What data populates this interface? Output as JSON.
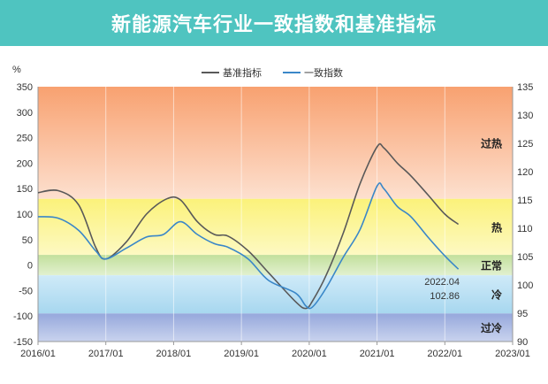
{
  "header": {
    "title": "新能源汽车行业一致指数和基准指标"
  },
  "chart_data": {
    "type": "line",
    "title": "新能源汽车行业一致指数和基准指标",
    "x_tick_labels": [
      "2016/01",
      "2017/01",
      "2018/01",
      "2019/01",
      "2020/01",
      "2021/01",
      "2022/01",
      "2023/01"
    ],
    "left_axis": {
      "unit": "%",
      "range": [
        -150,
        350
      ],
      "ticks": [
        350,
        300,
        250,
        200,
        150,
        100,
        50,
        0,
        -50,
        -100,
        -150
      ]
    },
    "right_axis": {
      "range": [
        90,
        135
      ],
      "ticks": [
        135,
        130,
        125,
        120,
        115,
        110,
        105,
        100,
        95,
        90
      ]
    },
    "zones": [
      {
        "label": "过热",
        "from": 130,
        "to": 350,
        "color": "#f9a877"
      },
      {
        "label": "热",
        "from": 20,
        "to": 130,
        "color": "#fbf48e"
      },
      {
        "label": "正常",
        "from": -20,
        "to": 20,
        "color": "#c9e3a6"
      },
      {
        "label": "冷",
        "from": -95,
        "to": -20,
        "color": "#a9daf0"
      },
      {
        "label": "过冷",
        "from": -150,
        "to": -95,
        "color": "#a8b8e2"
      }
    ],
    "legend": [
      {
        "name": "基准指标",
        "color": "#595959"
      },
      {
        "name": "一致指数",
        "color": "#3a87c8"
      }
    ],
    "series": [
      {
        "name": "基准指标",
        "axis": "left",
        "color": "#595959",
        "x": [
          2016.0,
          2016.3,
          2016.6,
          2016.85,
          2017.0,
          2017.3,
          2017.6,
          2017.9,
          2018.1,
          2018.35,
          2018.6,
          2018.8,
          2019.1,
          2019.4,
          2019.8,
          2019.95,
          2020.05,
          2020.25,
          2020.5,
          2020.75,
          2021.0,
          2021.1,
          2021.3,
          2021.5,
          2021.75,
          2022.0,
          2022.2
        ],
        "values": [
          142,
          146,
          118,
          35,
          12,
          45,
          100,
          130,
          128,
          85,
          60,
          57,
          28,
          -15,
          -72,
          -85,
          -70,
          -20,
          62,
          160,
          232,
          230,
          200,
          175,
          138,
          100,
          80
        ]
      },
      {
        "name": "一致指数",
        "axis": "left",
        "color": "#3a87c8",
        "x": [
          2016.0,
          2016.3,
          2016.6,
          2016.85,
          2017.0,
          2017.3,
          2017.6,
          2017.85,
          2018.1,
          2018.35,
          2018.6,
          2018.8,
          2019.1,
          2019.4,
          2019.8,
          2019.95,
          2020.05,
          2020.25,
          2020.5,
          2020.75,
          2021.0,
          2021.1,
          2021.3,
          2021.5,
          2021.75,
          2022.0,
          2022.2
        ],
        "values": [
          95,
          92,
          68,
          28,
          12,
          33,
          55,
          60,
          85,
          60,
          42,
          35,
          12,
          -30,
          -55,
          -80,
          -82,
          -45,
          15,
          70,
          155,
          150,
          115,
          95,
          55,
          18,
          -8
        ]
      }
    ],
    "annotation": {
      "date": "2022.04",
      "value": "102.86"
    }
  }
}
